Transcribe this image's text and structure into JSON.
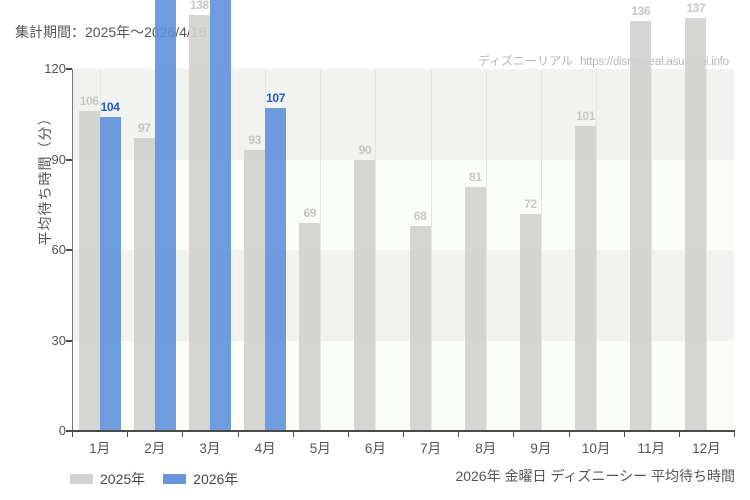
{
  "header": {
    "period_note": "集計期間：2025年～2026/4/18"
  },
  "watermark": {
    "site_name": "ディズニーリアル",
    "site_url": "https://disneyreal.asumirai.info"
  },
  "footer": {
    "chart_title": "2026年 金曜日 ディズニーシー 平均待ち時間"
  },
  "legend": [
    {
      "label": "2025年",
      "color": "#d2d3d1"
    },
    {
      "label": "2026年",
      "color": "#6495dd"
    }
  ],
  "colors": {
    "bar_2025": "#d0d1cf",
    "bar_2026": "#5e91dc",
    "label_2025": "#c6c7c5",
    "label_2026": "#1f5ac6",
    "band_gray": "#f2f3f0",
    "band_light": "#fbfdf9",
    "axis_text": "#555555",
    "watermark_text": "#b5b7b4"
  },
  "chart_data": {
    "type": "bar",
    "title": "2026年 金曜日 ディズニーシー 平均待ち時間",
    "xlabel": "",
    "ylabel": "平均待ち時間（分）",
    "ylim": [
      0,
      120
    ],
    "yticks": [
      0,
      30,
      60,
      90,
      120
    ],
    "grid": {
      "horizontal_bands": true,
      "vertical_lines_at_month_centers": true
    },
    "legend_position": "bottom-left",
    "categories": [
      "1月",
      "2月",
      "3月",
      "4月",
      "5月",
      "6月",
      "7月",
      "8月",
      "9月",
      "10月",
      "11月",
      "12月"
    ],
    "series": [
      {
        "name": "2025年",
        "values": [
          106,
          97,
          138,
          93,
          69,
          90,
          68,
          81,
          72,
          101,
          136,
          137
        ]
      },
      {
        "name": "2026年",
        "values": [
          104,
          "offscale",
          "offscale",
          107,
          null,
          null,
          null,
          null,
          null,
          null,
          null,
          null
        ],
        "offscale_note": "2月と3月のバーは図の上端を超えており値ラベルは見えない"
      }
    ]
  }
}
